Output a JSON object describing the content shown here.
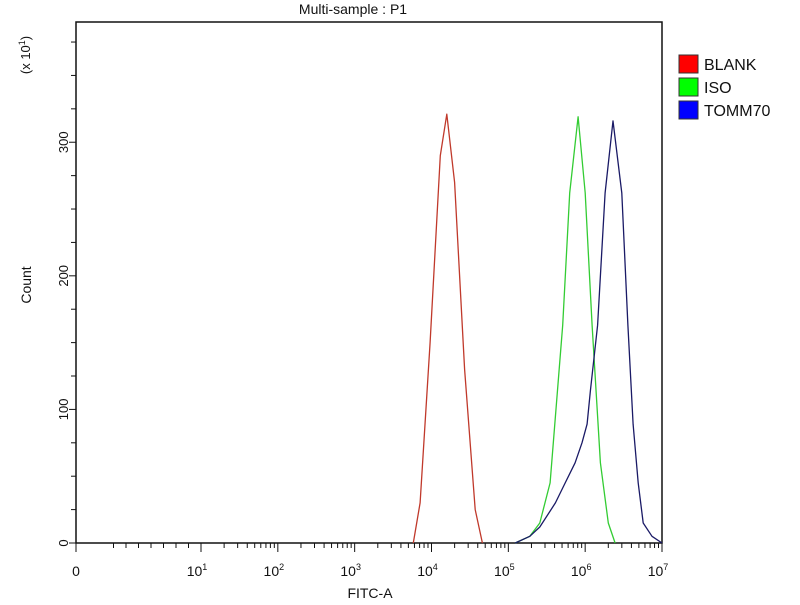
{
  "chart_data": {
    "type": "line",
    "title": "Multi-sample : P1",
    "xlabel": "FITC-A",
    "ylabel": "Count",
    "y_multiplier": "(x 10",
    "y_multiplier_exp": "1",
    "y_multiplier_close": ")",
    "x_scale": "biexponential (0, then log decades)",
    "xlim": [
      0,
      10000000
    ],
    "ylim": [
      0,
      390
    ],
    "grid": false,
    "legend_placement": "right-top",
    "x_ticks": [
      {
        "base": "0",
        "exp": ""
      },
      {
        "base": "10",
        "exp": "1"
      },
      {
        "base": "10",
        "exp": "2"
      },
      {
        "base": "10",
        "exp": "3"
      },
      {
        "base": "10",
        "exp": "4"
      },
      {
        "base": "10",
        "exp": "5"
      },
      {
        "base": "10",
        "exp": "6"
      },
      {
        "base": "10",
        "exp": "7"
      }
    ],
    "y_ticks": [
      "0",
      "100",
      "200",
      "300"
    ],
    "series": [
      {
        "name": "BLANK",
        "color": "#c0392b",
        "legend_color": "#ff0000",
        "points": [
          [
            5800,
            0
          ],
          [
            7100,
            30
          ],
          [
            9600,
            150
          ],
          [
            13000,
            290
          ],
          [
            15800,
            321
          ],
          [
            20000,
            270
          ],
          [
            27000,
            130
          ],
          [
            37000,
            25
          ],
          [
            46000,
            0
          ]
        ]
      },
      {
        "name": "ISO",
        "color": "#33cc33",
        "legend_color": "#00ff00",
        "points": [
          [
            123000,
            0
          ],
          [
            190000,
            5
          ],
          [
            257000,
            15
          ],
          [
            350000,
            45
          ],
          [
            510000,
            163
          ],
          [
            630000,
            262
          ],
          [
            810000,
            319
          ],
          [
            1000000,
            262
          ],
          [
            1230000,
            163
          ],
          [
            1580000,
            60
          ],
          [
            2000000,
            15
          ],
          [
            2450000,
            0
          ]
        ]
      },
      {
        "name": "TOMM70",
        "color": "#1a1a66",
        "legend_color": "#0000ff",
        "points": [
          [
            123000,
            0
          ],
          [
            190000,
            5
          ],
          [
            257000,
            12
          ],
          [
            410000,
            30
          ],
          [
            550000,
            45
          ],
          [
            740000,
            60
          ],
          [
            910000,
            75
          ],
          [
            1060000,
            89
          ],
          [
            1170000,
            114
          ],
          [
            1450000,
            163
          ],
          [
            1820000,
            262
          ],
          [
            2300000,
            316
          ],
          [
            3000000,
            262
          ],
          [
            3600000,
            163
          ],
          [
            4200000,
            89
          ],
          [
            4900000,
            45
          ],
          [
            5700000,
            15
          ],
          [
            7400000,
            5
          ],
          [
            10000000,
            0
          ]
        ]
      }
    ]
  }
}
